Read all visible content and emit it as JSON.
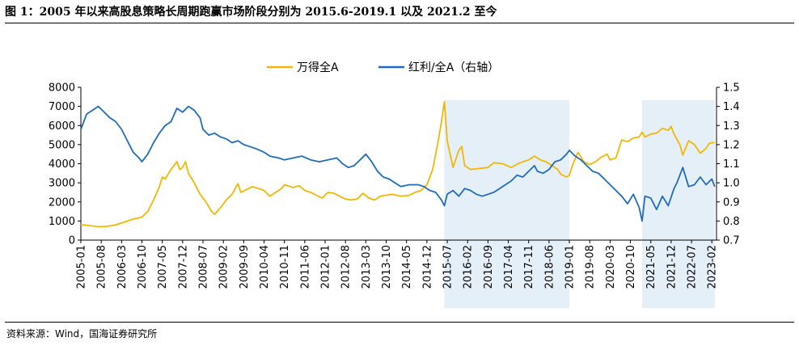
{
  "figure": {
    "title": "图 1：2005 年以来高股息策略长周期跑赢市场阶段分别为 2015.6-2019.1 以及 2021.2 至今",
    "source": "资料来源：Wind，国海证券研究所"
  },
  "chart_data": {
    "type": "line",
    "legend_position": "top-center",
    "grid": false,
    "x_tick_labels": [
      "2005-01",
      "2005-08",
      "2006-03",
      "2006-10",
      "2007-05",
      "2007-12",
      "2008-07",
      "2009-02",
      "2009-09",
      "2010-04",
      "2010-11",
      "2011-06",
      "2012-01",
      "2012-08",
      "2013-03",
      "2013-10",
      "2014-05",
      "2014-12",
      "2015-07",
      "2016-02",
      "2016-09",
      "2017-04",
      "2017-11",
      "2018-06",
      "2019-01",
      "2019-08",
      "2020-03",
      "2020-10",
      "2021-05",
      "2021-12",
      "2022-07",
      "2023-02"
    ],
    "y_left": {
      "range": [
        0,
        8000
      ],
      "ticks": [
        "0",
        "1000",
        "2000",
        "3000",
        "4000",
        "5000",
        "6000",
        "7000",
        "8000"
      ]
    },
    "y_right": {
      "range": [
        0.7,
        1.5
      ],
      "ticks": [
        "0.7",
        "0.8",
        "0.9",
        "1.0",
        "1.1",
        "1.2",
        "1.3",
        "1.4",
        "1.5"
      ]
    },
    "shaded_periods": [
      {
        "start": "2015-06",
        "end": "2019-01"
      },
      {
        "start": "2021-02",
        "end": "2023-03"
      }
    ],
    "series": [
      {
        "name": "万得全A",
        "axis": "left",
        "color": "#F2B705",
        "points": [
          [
            "2005-01",
            810
          ],
          [
            "2005-04",
            760
          ],
          [
            "2005-07",
            700
          ],
          [
            "2005-10",
            720
          ],
          [
            "2006-01",
            800
          ],
          [
            "2006-04",
            950
          ],
          [
            "2006-07",
            1100
          ],
          [
            "2006-10",
            1200
          ],
          [
            "2006-12",
            1500
          ],
          [
            "2007-02",
            2100
          ],
          [
            "2007-04",
            2800
          ],
          [
            "2007-05",
            3300
          ],
          [
            "2007-06",
            3200
          ],
          [
            "2007-08",
            3700
          ],
          [
            "2007-10",
            4100
          ],
          [
            "2007-11",
            3700
          ],
          [
            "2007-12",
            3800
          ],
          [
            "2008-01",
            4100
          ],
          [
            "2008-02",
            3500
          ],
          [
            "2008-04",
            3000
          ],
          [
            "2008-06",
            2400
          ],
          [
            "2008-08",
            2000
          ],
          [
            "2008-10",
            1500
          ],
          [
            "2008-11",
            1350
          ],
          [
            "2009-01",
            1700
          ],
          [
            "2009-03",
            2100
          ],
          [
            "2009-05",
            2400
          ],
          [
            "2009-07",
            2950
          ],
          [
            "2009-08",
            2500
          ],
          [
            "2009-10",
            2650
          ],
          [
            "2009-12",
            2800
          ],
          [
            "2010-02",
            2700
          ],
          [
            "2010-04",
            2600
          ],
          [
            "2010-06",
            2300
          ],
          [
            "2010-08",
            2500
          ],
          [
            "2010-10",
            2700
          ],
          [
            "2010-11",
            2900
          ],
          [
            "2011-02",
            2750
          ],
          [
            "2011-04",
            2850
          ],
          [
            "2011-06",
            2600
          ],
          [
            "2011-08",
            2500
          ],
          [
            "2011-10",
            2350
          ],
          [
            "2011-12",
            2200
          ],
          [
            "2012-02",
            2500
          ],
          [
            "2012-04",
            2450
          ],
          [
            "2012-06",
            2300
          ],
          [
            "2012-08",
            2150
          ],
          [
            "2012-10",
            2100
          ],
          [
            "2012-12",
            2150
          ],
          [
            "2013-02",
            2450
          ],
          [
            "2013-04",
            2200
          ],
          [
            "2013-06",
            2100
          ],
          [
            "2013-08",
            2300
          ],
          [
            "2013-10",
            2350
          ],
          [
            "2013-12",
            2400
          ],
          [
            "2014-03",
            2300
          ],
          [
            "2014-06",
            2350
          ],
          [
            "2014-08",
            2500
          ],
          [
            "2014-10",
            2600
          ],
          [
            "2014-12",
            2900
          ],
          [
            "2015-02",
            3700
          ],
          [
            "2015-04",
            5300
          ],
          [
            "2015-05",
            6200
          ],
          [
            "2015-06",
            7250
          ],
          [
            "2015-07",
            5200
          ],
          [
            "2015-08",
            4500
          ],
          [
            "2015-09",
            3800
          ],
          [
            "2015-11",
            4700
          ],
          [
            "2015-12",
            4900
          ],
          [
            "2016-01",
            3900
          ],
          [
            "2016-03",
            3700
          ],
          [
            "2016-06",
            3750
          ],
          [
            "2016-09",
            3800
          ],
          [
            "2016-11",
            4050
          ],
          [
            "2017-02",
            4000
          ],
          [
            "2017-05",
            3800
          ],
          [
            "2017-08",
            4050
          ],
          [
            "2017-11",
            4200
          ],
          [
            "2018-01",
            4400
          ],
          [
            "2018-03",
            4200
          ],
          [
            "2018-05",
            4100
          ],
          [
            "2018-07",
            3900
          ],
          [
            "2018-09",
            3700
          ],
          [
            "2018-10",
            3450
          ],
          [
            "2018-12",
            3300
          ],
          [
            "2019-01",
            3400
          ],
          [
            "2019-02",
            3900
          ],
          [
            "2019-04",
            4600
          ],
          [
            "2019-06",
            4100
          ],
          [
            "2019-08",
            3950
          ],
          [
            "2019-10",
            4100
          ],
          [
            "2019-12",
            4350
          ],
          [
            "2020-02",
            4500
          ],
          [
            "2020-03",
            4200
          ],
          [
            "2020-05",
            4300
          ],
          [
            "2020-07",
            5250
          ],
          [
            "2020-09",
            5150
          ],
          [
            "2020-11",
            5350
          ],
          [
            "2021-01",
            5400
          ],
          [
            "2021-02",
            5650
          ],
          [
            "2021-03",
            5400
          ],
          [
            "2021-05",
            5550
          ],
          [
            "2021-07",
            5600
          ],
          [
            "2021-09",
            5850
          ],
          [
            "2021-11",
            5750
          ],
          [
            "2021-12",
            5950
          ],
          [
            "2022-01",
            5550
          ],
          [
            "2022-03",
            5000
          ],
          [
            "2022-04",
            4450
          ],
          [
            "2022-06",
            5200
          ],
          [
            "2022-08",
            5000
          ],
          [
            "2022-10",
            4550
          ],
          [
            "2022-12",
            4800
          ],
          [
            "2023-01",
            5050
          ],
          [
            "2023-02",
            5100
          ],
          [
            "2023-03",
            5100
          ]
        ]
      },
      {
        "name": "红利/全A（右轴）",
        "axis": "right",
        "color": "#1F6BBE",
        "points": [
          [
            "2005-01",
            1.28
          ],
          [
            "2005-03",
            1.36
          ],
          [
            "2005-05",
            1.38
          ],
          [
            "2005-07",
            1.4
          ],
          [
            "2005-09",
            1.37
          ],
          [
            "2005-11",
            1.34
          ],
          [
            "2006-01",
            1.32
          ],
          [
            "2006-03",
            1.28
          ],
          [
            "2006-05",
            1.22
          ],
          [
            "2006-07",
            1.16
          ],
          [
            "2006-09",
            1.13
          ],
          [
            "2006-10",
            1.11
          ],
          [
            "2006-12",
            1.15
          ],
          [
            "2007-02",
            1.21
          ],
          [
            "2007-04",
            1.26
          ],
          [
            "2007-06",
            1.3
          ],
          [
            "2007-08",
            1.32
          ],
          [
            "2007-10",
            1.39
          ],
          [
            "2007-12",
            1.37
          ],
          [
            "2008-02",
            1.4
          ],
          [
            "2008-04",
            1.38
          ],
          [
            "2008-06",
            1.34
          ],
          [
            "2008-07",
            1.28
          ],
          [
            "2008-09",
            1.25
          ],
          [
            "2008-11",
            1.26
          ],
          [
            "2009-01",
            1.24
          ],
          [
            "2009-03",
            1.23
          ],
          [
            "2009-05",
            1.21
          ],
          [
            "2009-07",
            1.22
          ],
          [
            "2009-09",
            1.2
          ],
          [
            "2009-11",
            1.19
          ],
          [
            "2010-01",
            1.18
          ],
          [
            "2010-04",
            1.16
          ],
          [
            "2010-06",
            1.14
          ],
          [
            "2010-09",
            1.13
          ],
          [
            "2010-11",
            1.12
          ],
          [
            "2011-02",
            1.13
          ],
          [
            "2011-05",
            1.14
          ],
          [
            "2011-08",
            1.12
          ],
          [
            "2011-11",
            1.11
          ],
          [
            "2012-02",
            1.12
          ],
          [
            "2012-05",
            1.13
          ],
          [
            "2012-07",
            1.1
          ],
          [
            "2012-09",
            1.08
          ],
          [
            "2012-11",
            1.09
          ],
          [
            "2013-01",
            1.12
          ],
          [
            "2013-03",
            1.15
          ],
          [
            "2013-05",
            1.11
          ],
          [
            "2013-07",
            1.06
          ],
          [
            "2013-09",
            1.03
          ],
          [
            "2013-11",
            1.02
          ],
          [
            "2014-01",
            1.0
          ],
          [
            "2014-03",
            0.98
          ],
          [
            "2014-06",
            0.99
          ],
          [
            "2014-09",
            0.99
          ],
          [
            "2014-11",
            0.98
          ],
          [
            "2014-12",
            0.97
          ],
          [
            "2015-01",
            0.96
          ],
          [
            "2015-03",
            0.95
          ],
          [
            "2015-05",
            0.91
          ],
          [
            "2015-06",
            0.88
          ],
          [
            "2015-07",
            0.94
          ],
          [
            "2015-09",
            0.96
          ],
          [
            "2015-11",
            0.93
          ],
          [
            "2016-01",
            0.97
          ],
          [
            "2016-03",
            0.96
          ],
          [
            "2016-05",
            0.94
          ],
          [
            "2016-07",
            0.93
          ],
          [
            "2016-09",
            0.94
          ],
          [
            "2016-11",
            0.95
          ],
          [
            "2017-01",
            0.97
          ],
          [
            "2017-03",
            0.99
          ],
          [
            "2017-05",
            1.01
          ],
          [
            "2017-07",
            1.04
          ],
          [
            "2017-09",
            1.03
          ],
          [
            "2017-11",
            1.06
          ],
          [
            "2018-01",
            1.09
          ],
          [
            "2018-02",
            1.06
          ],
          [
            "2018-04",
            1.05
          ],
          [
            "2018-06",
            1.07
          ],
          [
            "2018-08",
            1.11
          ],
          [
            "2018-10",
            1.12
          ],
          [
            "2018-12",
            1.15
          ],
          [
            "2019-01",
            1.17
          ],
          [
            "2019-03",
            1.14
          ],
          [
            "2019-05",
            1.12
          ],
          [
            "2019-07",
            1.09
          ],
          [
            "2019-09",
            1.06
          ],
          [
            "2019-11",
            1.05
          ],
          [
            "2020-01",
            1.02
          ],
          [
            "2020-03",
            0.99
          ],
          [
            "2020-05",
            0.96
          ],
          [
            "2020-07",
            0.93
          ],
          [
            "2020-09",
            0.89
          ],
          [
            "2020-11",
            0.94
          ],
          [
            "2021-01",
            0.87
          ],
          [
            "2021-02",
            0.8
          ],
          [
            "2021-03",
            0.93
          ],
          [
            "2021-05",
            0.92
          ],
          [
            "2021-07",
            0.86
          ],
          [
            "2021-09",
            0.93
          ],
          [
            "2021-11",
            0.88
          ],
          [
            "2022-01",
            0.97
          ],
          [
            "2022-02",
            1.0
          ],
          [
            "2022-04",
            1.08
          ],
          [
            "2022-06",
            0.98
          ],
          [
            "2022-08",
            0.99
          ],
          [
            "2022-10",
            1.03
          ],
          [
            "2022-12",
            0.99
          ],
          [
            "2023-02",
            1.02
          ],
          [
            "2023-03",
            0.98
          ]
        ]
      }
    ]
  }
}
